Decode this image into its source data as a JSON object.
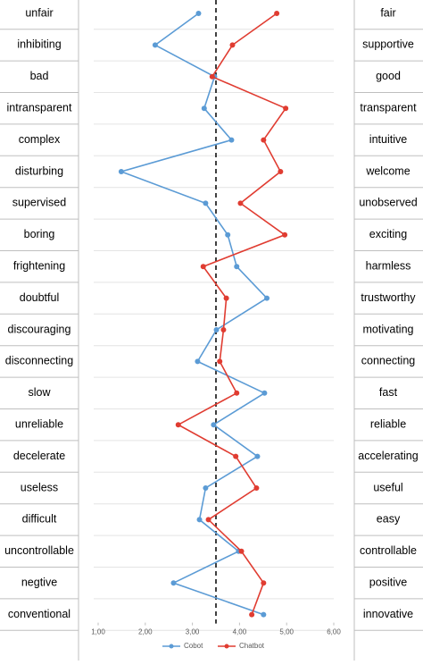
{
  "chart_data": {
    "type": "line",
    "categories": [
      "unfair",
      "inhibiting",
      "bad",
      "intransparent",
      "complex",
      "disturbing",
      "supervised",
      "boring",
      "frightening",
      "doubtful",
      "discouraging",
      "disconnecting",
      "slow",
      "unreliable",
      "decelerate",
      "useless",
      "difficult",
      "uncontrollable",
      "negtive",
      "conventional"
    ],
    "right_labels": [
      "fair",
      "supportive",
      "good",
      "transparent",
      "intuitive",
      "welcome",
      "unobserved",
      "exciting",
      "harmless",
      "trustworthy",
      "motivating",
      "connecting",
      "fast",
      "reliable",
      "accelerating",
      "useful",
      "easy",
      "controllable",
      "positive",
      "innovative"
    ],
    "series": [
      {
        "name": "Cobot",
        "color": "#5b9bd5",
        "values": [
          3.13,
          2.21,
          3.47,
          3.25,
          3.83,
          1.49,
          3.28,
          3.75,
          3.94,
          4.58,
          3.51,
          3.11,
          4.53,
          3.45,
          4.38,
          3.28,
          3.15,
          3.98,
          2.6,
          4.51
        ]
      },
      {
        "name": "Chatbot",
        "color": "#e03c31",
        "values": [
          4.79,
          3.85,
          3.42,
          4.98,
          4.51,
          4.87,
          4.02,
          4.96,
          3.23,
          3.72,
          3.66,
          3.58,
          3.94,
          2.7,
          3.92,
          4.36,
          3.34,
          4.04,
          4.51,
          4.26
        ]
      }
    ],
    "reference_line": 3.5,
    "xlim": [
      1,
      6
    ],
    "xticks": [
      {
        "value": 1,
        "label": "1,00"
      },
      {
        "value": 2,
        "label": "2,00"
      },
      {
        "value": 3,
        "label": "3,00"
      },
      {
        "value": 4,
        "label": "4,00"
      },
      {
        "value": 5,
        "label": "5,00"
      },
      {
        "value": 6,
        "label": "6,00"
      }
    ],
    "grid": true,
    "legend": "bottom"
  }
}
